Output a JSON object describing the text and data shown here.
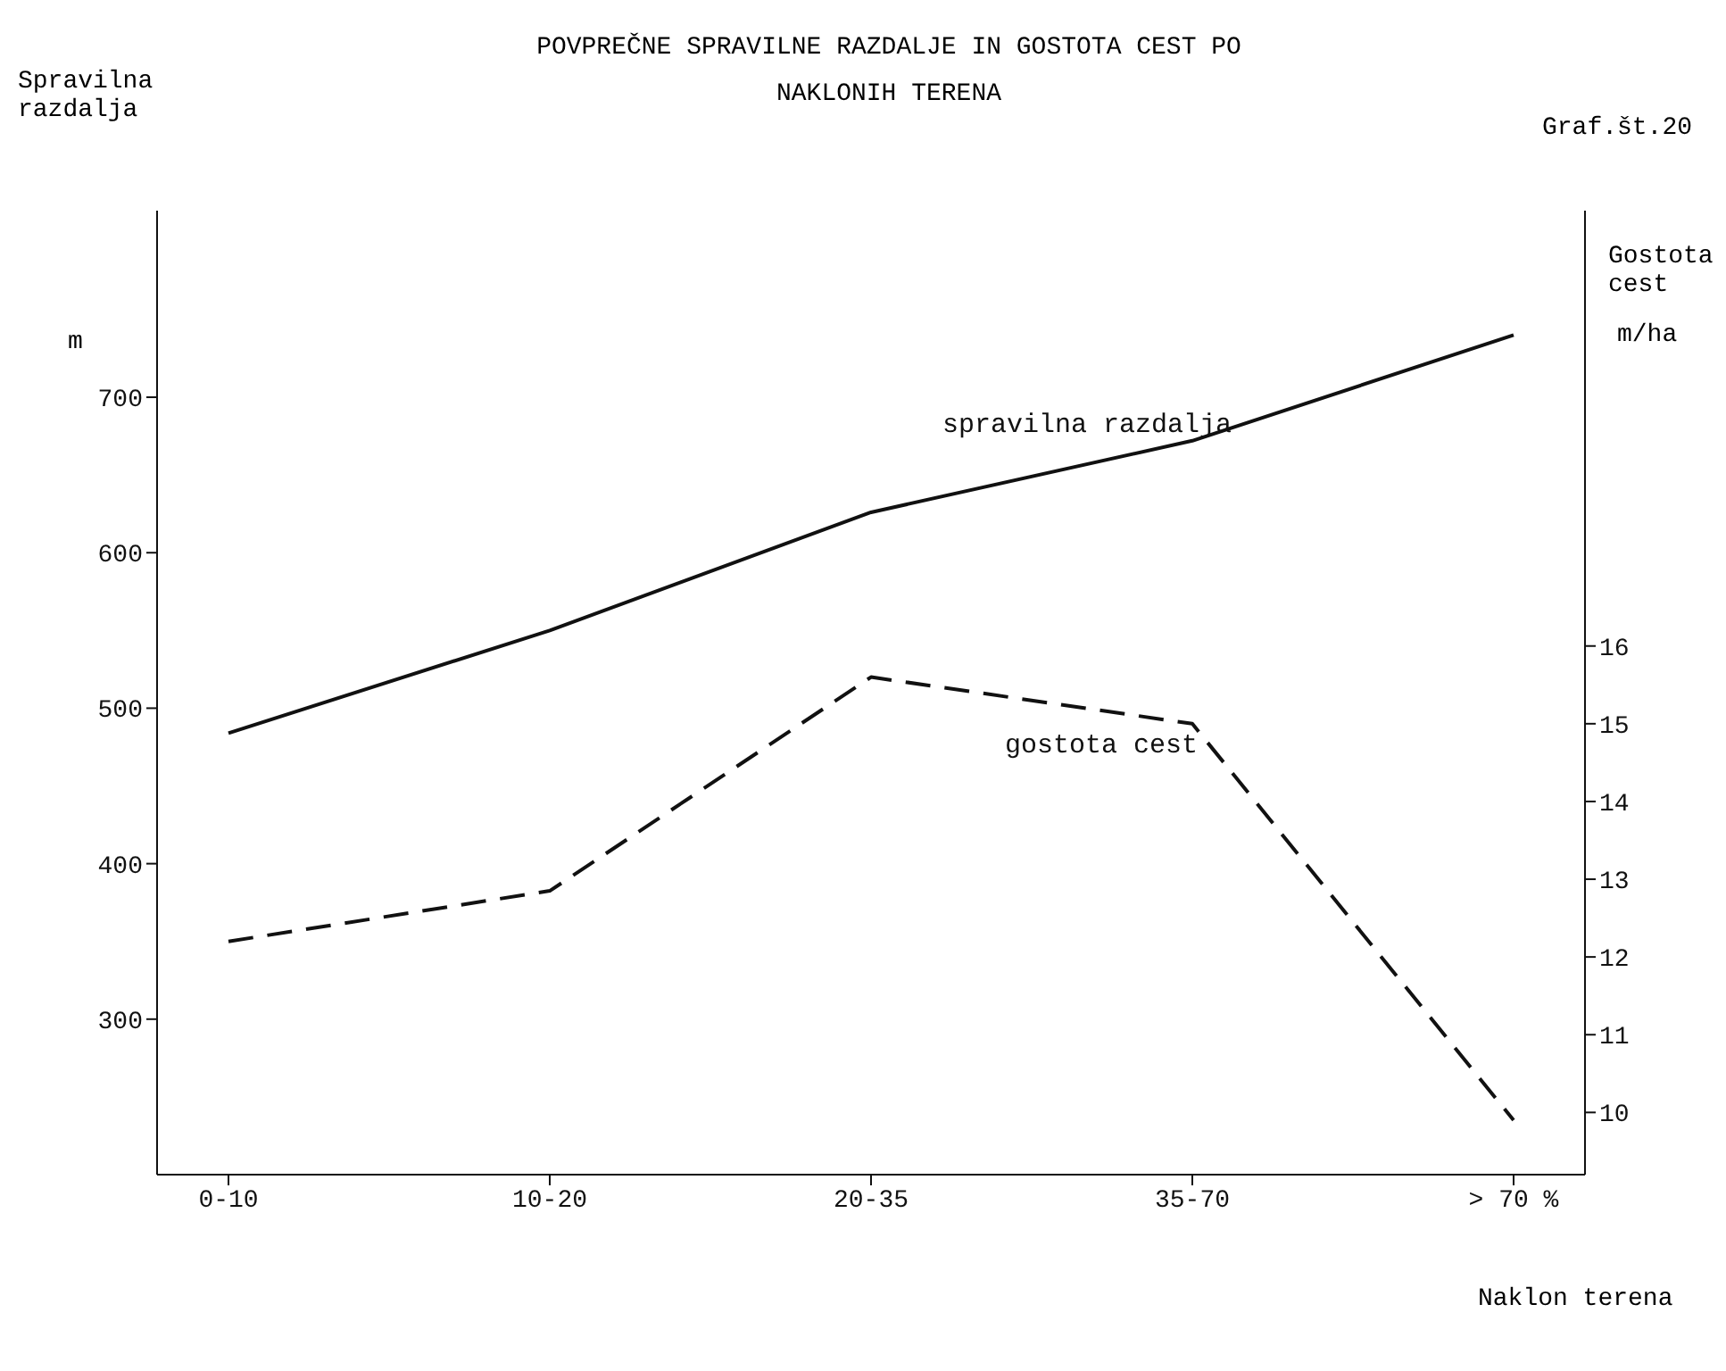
{
  "chart_data": {
    "type": "line",
    "title": "POVPREČNE SPRAVILNE RAZDALJE IN GOSTOTA CEST PO NAKLONIH TERENA",
    "xlabel": "Naklon terena",
    "ylabel": "Spravilna razdalja",
    "y2label": "Gostota cest",
    "annotations": [
      "Graf.št.20",
      "m",
      "m/ha"
    ],
    "categories": [
      "0-10",
      "10-20",
      "20-35",
      "35-70",
      "> 70 %"
    ],
    "series": [
      {
        "name": "spravilna razdalja",
        "color": "#111111",
        "line_style": "solid",
        "values": [
          484,
          550,
          626,
          672,
          740
        ]
      },
      {
        "name": "gostota cest",
        "color": "#111111",
        "line_style": "dashed",
        "axis": "y2",
        "values": [
          12.2,
          12.85,
          15.6,
          15.0,
          9.9
        ]
      }
    ],
    "ylim": [
      200,
      820
    ],
    "yticks": [
      300,
      400,
      500,
      600,
      700
    ],
    "y2lim": [
      9.2,
      21.6
    ],
    "y2ticks": [
      10,
      11,
      12,
      13,
      14,
      15,
      16
    ],
    "marker": "none"
  }
}
